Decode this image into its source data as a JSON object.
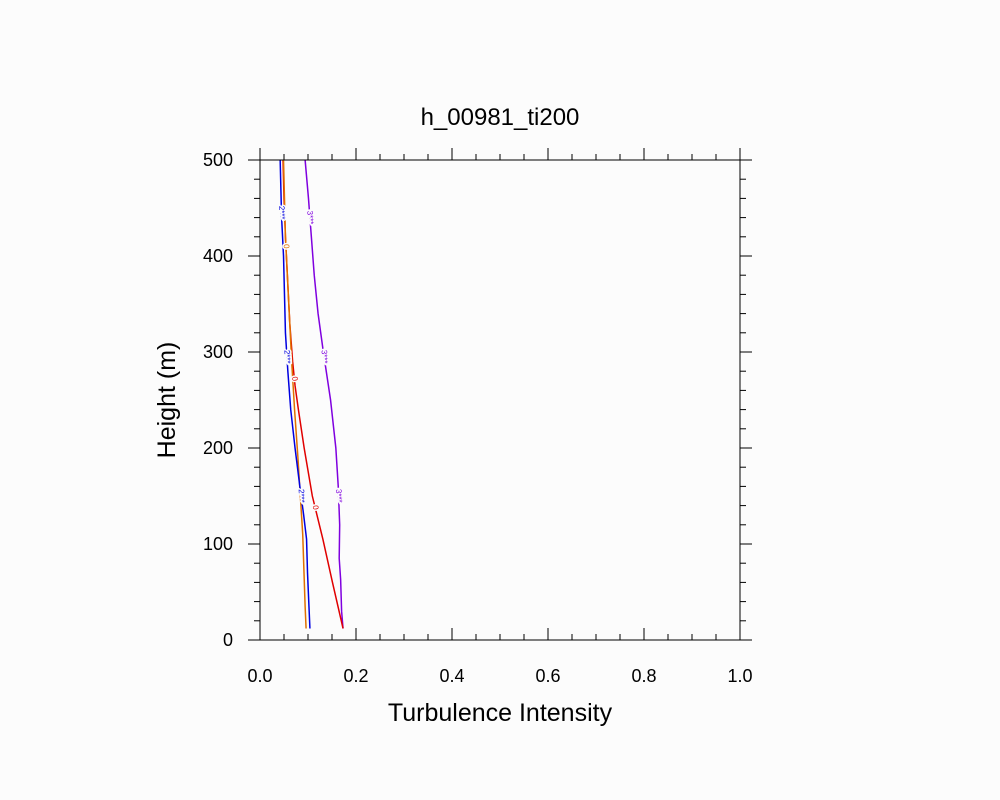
{
  "chart_data": {
    "type": "line",
    "title": "h_00981_ti200",
    "xlabel": "Turbulence Intensity",
    "ylabel": "Height (m)",
    "xlim": [
      0.0,
      1.0
    ],
    "ylim": [
      0,
      500
    ],
    "xticks": [
      "0.0",
      "0.2",
      "0.4",
      "0.6",
      "0.8",
      "1.0"
    ],
    "yticks": [
      "0",
      "100",
      "200",
      "300",
      "400",
      "500"
    ],
    "grid": false,
    "series": [
      {
        "color": "#7f00df",
        "label": "3***",
        "points": [
          [
            0.173,
            12
          ],
          [
            0.17,
            30
          ],
          [
            0.168,
            63
          ],
          [
            0.165,
            85
          ],
          [
            0.166,
            120
          ],
          [
            0.163,
            160
          ],
          [
            0.158,
            200
          ],
          [
            0.147,
            250
          ],
          [
            0.132,
            300
          ],
          [
            0.121,
            340
          ],
          [
            0.113,
            380
          ],
          [
            0.107,
            420
          ],
          [
            0.101,
            460
          ],
          [
            0.094,
            500
          ]
        ],
        "label_y": [
          150,
          295,
          440
        ]
      },
      {
        "color": "#e00000",
        "label": "0",
        "points": [
          [
            0.173,
            12
          ],
          [
            0.151,
            60
          ],
          [
            0.131,
            105
          ],
          [
            0.109,
            150
          ],
          [
            0.092,
            200
          ],
          [
            0.08,
            240
          ],
          [
            0.073,
            265
          ],
          [
            0.068,
            290
          ],
          [
            0.062,
            330
          ],
          [
            0.057,
            380
          ],
          [
            0.053,
            420
          ],
          [
            0.05,
            460
          ],
          [
            0.048,
            500
          ]
        ],
        "label_y": [
          138,
          272
        ]
      },
      {
        "color": "#e07000",
        "label": "0",
        "points": [
          [
            0.096,
            12
          ],
          [
            0.094,
            35
          ],
          [
            0.091,
            80
          ],
          [
            0.089,
            110
          ],
          [
            0.084,
            150
          ],
          [
            0.079,
            190
          ],
          [
            0.072,
            240
          ],
          [
            0.066,
            290
          ],
          [
            0.062,
            330
          ],
          [
            0.057,
            380
          ],
          [
            0.053,
            420
          ],
          [
            0.051,
            460
          ],
          [
            0.049,
            500
          ]
        ],
        "label_y": [
          410
        ]
      },
      {
        "color": "#0000e0",
        "label": "2***",
        "points": [
          [
            0.104,
            12
          ],
          [
            0.102,
            35
          ],
          [
            0.099,
            70
          ],
          [
            0.097,
            105
          ],
          [
            0.091,
            130
          ],
          [
            0.083,
            160
          ],
          [
            0.073,
            200
          ],
          [
            0.064,
            240
          ],
          [
            0.058,
            280
          ],
          [
            0.053,
            320
          ],
          [
            0.051,
            360
          ],
          [
            0.049,
            400
          ],
          [
            0.045,
            440
          ],
          [
            0.043,
            480
          ],
          [
            0.042,
            500
          ]
        ],
        "label_y": [
          150,
          295,
          445
        ]
      }
    ]
  }
}
